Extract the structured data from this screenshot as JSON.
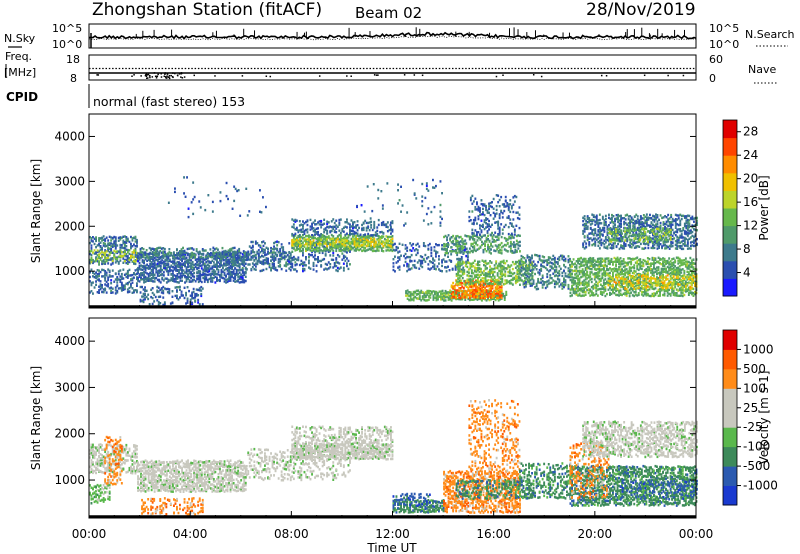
{
  "header": {
    "title": "Zhongshan Station (fitACF)",
    "beam": "Beam 02",
    "date": "28/Nov/2019"
  },
  "top_panels": {
    "nsky_label": "N.Sky",
    "nsky_ticks": [
      "10^5",
      "10^0"
    ],
    "nsearch_label": "N.Search",
    "nsearch_ticks": [
      "10^5",
      "10^0"
    ],
    "freq_label_1": "Freq.",
    "freq_label_2": "[MHz]",
    "freq_ticks": [
      "18",
      "8"
    ],
    "nave_label": "Nave",
    "nave_ticks": [
      "60",
      "0"
    ],
    "cpid_label": "CPID",
    "cpid_text": "normal (fast stereo) 153"
  },
  "colors": {
    "power_scale": [
      "#1a1aff",
      "#2b4fb0",
      "#3d7a8c",
      "#4f9a6a",
      "#66b84c",
      "#bcd42a",
      "#f0c000",
      "#ff8c00",
      "#ff4500",
      "#e00000"
    ],
    "velocity_scale": [
      "#e00000",
      "#ff5a00",
      "#ff8c1a",
      "#c8c8be",
      "#c8c8be",
      "#5ab84c",
      "#3d8a5a",
      "#2b5ab0",
      "#1a3ad0"
    ],
    "background_fill": "#ffffff"
  },
  "chart_data": [
    {
      "type": "heatmap",
      "name": "power",
      "xlabel": "",
      "ylabel": "Slant Range [km]",
      "x_ticks": [
        "00:00",
        "04:00",
        "08:00",
        "12:00",
        "16:00",
        "20:00",
        "00:00"
      ],
      "xlim_hours": [
        0,
        24
      ],
      "y_ticks": [
        1000,
        2000,
        3000,
        4000
      ],
      "ylim_km": [
        180,
        4500
      ],
      "colorbar_label": "Power [dB]",
      "colorbar_ticks": [
        4,
        8,
        12,
        16,
        20,
        24,
        28
      ],
      "colorbar_range": [
        0,
        30
      ],
      "bands": [
        {
          "t0": 0.0,
          "t1": 1.9,
          "r0": 1150,
          "r1": 1750,
          "v": 6,
          "d": 0.55
        },
        {
          "t0": 0.0,
          "t1": 1.9,
          "r0": 500,
          "r1": 1000,
          "v": 5,
          "d": 0.45
        },
        {
          "t0": 0.0,
          "t1": 1.9,
          "r0": 1200,
          "r1": 1450,
          "v": 15,
          "d": 0.35
        },
        {
          "t0": 1.9,
          "t1": 6.2,
          "r0": 750,
          "r1": 1400,
          "v": 5,
          "d": 0.7
        },
        {
          "t0": 2.0,
          "t1": 6.0,
          "r0": 1300,
          "r1": 1500,
          "v": 7,
          "d": 0.45
        },
        {
          "t0": 2.0,
          "t1": 4.5,
          "r0": 250,
          "r1": 650,
          "v": 5,
          "d": 0.3
        },
        {
          "t0": 5.0,
          "t1": 8.0,
          "r0": 1150,
          "r1": 1450,
          "v": 6,
          "d": 0.5
        },
        {
          "t0": 6.2,
          "t1": 10.3,
          "r0": 1000,
          "r1": 1650,
          "v": 5,
          "d": 0.3
        },
        {
          "t0": 8.0,
          "t1": 12.0,
          "r0": 1450,
          "r1": 1800,
          "v": 12,
          "d": 0.75
        },
        {
          "t0": 8.0,
          "t1": 12.0,
          "r0": 1550,
          "r1": 1700,
          "v": 18,
          "d": 0.45
        },
        {
          "t0": 8.0,
          "t1": 12.0,
          "r0": 1800,
          "r1": 2150,
          "v": 5,
          "d": 0.35
        },
        {
          "t0": 12.0,
          "t1": 15.0,
          "r0": 1000,
          "r1": 1600,
          "v": 5,
          "d": 0.3
        },
        {
          "t0": 12.5,
          "t1": 16.5,
          "r0": 350,
          "r1": 550,
          "v": 12,
          "d": 0.8
        },
        {
          "t0": 14.3,
          "t1": 16.3,
          "r0": 400,
          "r1": 800,
          "v": 24,
          "d": 0.7
        },
        {
          "t0": 14.5,
          "t1": 17.5,
          "r0": 700,
          "r1": 1200,
          "v": 13,
          "d": 0.55
        },
        {
          "t0": 14.0,
          "t1": 17.0,
          "r0": 1400,
          "r1": 1800,
          "v": 10,
          "d": 0.45
        },
        {
          "t0": 15.0,
          "t1": 17.0,
          "r0": 1800,
          "r1": 2700,
          "v": 5,
          "d": 0.25
        },
        {
          "t0": 17.0,
          "t1": 19.0,
          "r0": 600,
          "r1": 1350,
          "v": 7,
          "d": 0.4
        },
        {
          "t0": 19.0,
          "t1": 24.0,
          "r0": 450,
          "r1": 1300,
          "v": 12,
          "d": 0.65
        },
        {
          "t0": 20.5,
          "t1": 24.0,
          "r0": 600,
          "r1": 900,
          "v": 19,
          "d": 0.4
        },
        {
          "t0": 19.5,
          "t1": 24.0,
          "r0": 1500,
          "r1": 2250,
          "v": 6,
          "d": 0.55
        },
        {
          "t0": 20.5,
          "t1": 23.0,
          "r0": 1650,
          "r1": 1950,
          "v": 13,
          "d": 0.35
        },
        {
          "t0": 3.0,
          "t1": 7.0,
          "r0": 2200,
          "r1": 3100,
          "v": 5,
          "d": 0.03
        },
        {
          "t0": 10.5,
          "t1": 14.0,
          "r0": 2000,
          "r1": 3000,
          "v": 5,
          "d": 0.04
        }
      ]
    },
    {
      "type": "heatmap",
      "name": "velocity",
      "xlabel": "Time UT",
      "ylabel": "Slant Range [km]",
      "x_ticks": [
        "00:00",
        "04:00",
        "08:00",
        "12:00",
        "16:00",
        "20:00",
        "00:00"
      ],
      "xlim_hours": [
        0,
        24
      ],
      "y_ticks": [
        1000,
        2000,
        3000,
        4000
      ],
      "ylim_km": [
        180,
        4500
      ],
      "colorbar_label": "Velocity [m s-1]",
      "colorbar_ticks": [
        "1000",
        "500",
        "100",
        "25",
        "-25",
        "-100",
        "-500",
        "-1000"
      ],
      "bands": [
        {
          "t0": 0.0,
          "t1": 1.9,
          "r0": 1150,
          "r1": 1750,
          "c": 4,
          "d": 0.55
        },
        {
          "t0": 0.0,
          "t1": 0.8,
          "r0": 500,
          "r1": 900,
          "c": 5,
          "d": 0.5
        },
        {
          "t0": 0.6,
          "t1": 1.3,
          "r0": 900,
          "r1": 1900,
          "c": 2,
          "d": 0.35
        },
        {
          "t0": 1.9,
          "t1": 6.2,
          "r0": 750,
          "r1": 1400,
          "c": 4,
          "d": 0.7
        },
        {
          "t0": 2.0,
          "t1": 4.5,
          "r0": 250,
          "r1": 600,
          "c": 2,
          "d": 0.35
        },
        {
          "t0": 6.2,
          "t1": 10.3,
          "r0": 1000,
          "r1": 1650,
          "c": 4,
          "d": 0.3
        },
        {
          "t0": 8.0,
          "t1": 12.0,
          "r0": 1450,
          "r1": 1800,
          "c": 4,
          "d": 0.8
        },
        {
          "t0": 8.0,
          "t1": 12.0,
          "r0": 1800,
          "r1": 2150,
          "c": 4,
          "d": 0.35
        },
        {
          "t0": 12.0,
          "t1": 14.0,
          "r0": 300,
          "r1": 550,
          "c": 6,
          "d": 0.75
        },
        {
          "t0": 12.0,
          "t1": 13.5,
          "r0": 450,
          "r1": 700,
          "c": 7,
          "d": 0.4
        },
        {
          "t0": 14.0,
          "t1": 17.0,
          "r0": 300,
          "r1": 1200,
          "c": 2,
          "d": 0.6
        },
        {
          "t0": 14.5,
          "t1": 17.5,
          "r0": 600,
          "r1": 1000,
          "c": 6,
          "d": 0.45
        },
        {
          "t0": 15.0,
          "t1": 17.0,
          "r0": 1200,
          "r1": 2700,
          "c": 2,
          "d": 0.25
        },
        {
          "t0": 17.0,
          "t1": 19.0,
          "r0": 600,
          "r1": 1350,
          "c": 6,
          "d": 0.4
        },
        {
          "t0": 19.0,
          "t1": 24.0,
          "r0": 450,
          "r1": 1300,
          "c": 6,
          "d": 0.65
        },
        {
          "t0": 19.0,
          "t1": 20.5,
          "r0": 600,
          "r1": 1800,
          "c": 2,
          "d": 0.3
        },
        {
          "t0": 19.5,
          "t1": 24.0,
          "r0": 1500,
          "r1": 2250,
          "c": 4,
          "d": 0.55
        },
        {
          "t0": 21.0,
          "t1": 24.0,
          "r0": 600,
          "r1": 1000,
          "c": 7,
          "d": 0.2
        }
      ]
    }
  ]
}
